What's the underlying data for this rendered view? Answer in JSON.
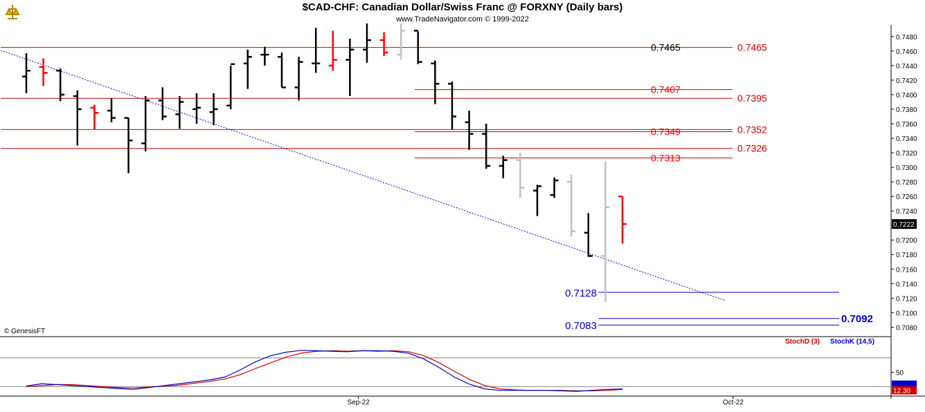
{
  "header": {
    "title": "$CAD-CHF:  Canadian Dollar/Swiss Franc @ FORXNY  (Daily bars)",
    "subtitle": "www.TradeNavigator.com © 1999-2022",
    "copyright": "© GenesisFT",
    "logo": "trade-navigator-logo-icon"
  },
  "chart_data": {
    "type": "ohlc",
    "symbol": "$CAD-CHF",
    "ylim": [
      0.7068,
      0.7496
    ],
    "y_ticks": [
      "0.7080",
      "0.7100",
      "0.7120",
      "0.7140",
      "0.7160",
      "0.7180",
      "0.7200",
      "0.7220",
      "0.7240",
      "0.7260",
      "0.7280",
      "0.7300",
      "0.7320",
      "0.7340",
      "0.7360",
      "0.7380",
      "0.7400",
      "0.7420",
      "0.7440",
      "0.7460",
      "0.7480"
    ],
    "x_labels": [
      {
        "label": "Sep-22",
        "bar": 19.5
      },
      {
        "label": "Oct-22",
        "bar": 41.5
      }
    ],
    "last_price": "0.7222",
    "bar_colors": {
      "black": "#000000",
      "red": "#ff0000",
      "gray": "#c0c0c0"
    },
    "bars": [
      {
        "o": 0.7425,
        "h": 0.7457,
        "l": 0.7402,
        "c": 0.7433,
        "color": "black"
      },
      {
        "o": 0.7438,
        "h": 0.745,
        "l": 0.7412,
        "c": 0.743,
        "color": "red"
      },
      {
        "o": 0.7433,
        "h": 0.7436,
        "l": 0.7391,
        "c": 0.74,
        "color": "black"
      },
      {
        "o": 0.7398,
        "h": 0.7406,
        "l": 0.733,
        "c": 0.738,
        "color": "black"
      },
      {
        "o": 0.7382,
        "h": 0.7386,
        "l": 0.7352,
        "c": 0.7375,
        "color": "red"
      },
      {
        "o": 0.7378,
        "h": 0.7395,
        "l": 0.7362,
        "c": 0.7368,
        "color": "black"
      },
      {
        "o": 0.7368,
        "h": 0.7368,
        "l": 0.7292,
        "c": 0.7337,
        "color": "black"
      },
      {
        "o": 0.7333,
        "h": 0.7398,
        "l": 0.7322,
        "c": 0.7392,
        "color": "black"
      },
      {
        "o": 0.7392,
        "h": 0.741,
        "l": 0.7365,
        "c": 0.737,
        "color": "black"
      },
      {
        "o": 0.7373,
        "h": 0.7398,
        "l": 0.7353,
        "c": 0.739,
        "color": "black"
      },
      {
        "o": 0.738,
        "h": 0.7402,
        "l": 0.736,
        "c": 0.7382,
        "color": "black"
      },
      {
        "o": 0.7376,
        "h": 0.7402,
        "l": 0.7358,
        "c": 0.738,
        "color": "black"
      },
      {
        "o": 0.7385,
        "h": 0.744,
        "l": 0.738,
        "c": 0.7442,
        "color": "black"
      },
      {
        "o": 0.7443,
        "h": 0.7462,
        "l": 0.7408,
        "c": 0.7452,
        "color": "black"
      },
      {
        "o": 0.7455,
        "h": 0.7466,
        "l": 0.744,
        "c": 0.7455,
        "color": "black"
      },
      {
        "o": 0.7452,
        "h": 0.7458,
        "l": 0.741,
        "c": 0.741,
        "color": "black"
      },
      {
        "o": 0.741,
        "h": 0.7452,
        "l": 0.7392,
        "c": 0.7445,
        "color": "black"
      },
      {
        "o": 0.7443,
        "h": 0.7492,
        "l": 0.743,
        "c": 0.7443,
        "color": "black"
      },
      {
        "o": 0.744,
        "h": 0.7488,
        "l": 0.7433,
        "c": 0.7448,
        "color": "red"
      },
      {
        "o": 0.7448,
        "h": 0.7477,
        "l": 0.7398,
        "c": 0.7462,
        "color": "black"
      },
      {
        "o": 0.7462,
        "h": 0.7498,
        "l": 0.7444,
        "c": 0.7475,
        "color": "black"
      },
      {
        "o": 0.7475,
        "h": 0.7486,
        "l": 0.7453,
        "c": 0.7458,
        "color": "red"
      },
      {
        "o": 0.7455,
        "h": 0.7498,
        "l": 0.7448,
        "c": 0.7488,
        "color": "gray"
      },
      {
        "o": 0.7488,
        "h": 0.7487,
        "l": 0.7442,
        "c": 0.7445,
        "color": "black"
      },
      {
        "o": 0.7443,
        "h": 0.7447,
        "l": 0.7387,
        "c": 0.7415,
        "color": "black"
      },
      {
        "o": 0.7415,
        "h": 0.7418,
        "l": 0.7352,
        "c": 0.737,
        "color": "black"
      },
      {
        "o": 0.7362,
        "h": 0.7378,
        "l": 0.7324,
        "c": 0.7346,
        "color": "black"
      },
      {
        "o": 0.7346,
        "h": 0.736,
        "l": 0.7298,
        "c": 0.7302,
        "color": "black"
      },
      {
        "o": 0.7302,
        "h": 0.7316,
        "l": 0.7285,
        "c": 0.731,
        "color": "black"
      },
      {
        "o": 0.731,
        "h": 0.732,
        "l": 0.7258,
        "c": 0.7272,
        "color": "gray"
      },
      {
        "o": 0.7268,
        "h": 0.7276,
        "l": 0.7233,
        "c": 0.7274,
        "color": "black"
      },
      {
        "o": 0.7262,
        "h": 0.7286,
        "l": 0.7258,
        "c": 0.7282,
        "color": "black"
      },
      {
        "o": 0.728,
        "h": 0.729,
        "l": 0.7205,
        "c": 0.7212,
        "color": "gray"
      },
      {
        "o": 0.721,
        "h": 0.7237,
        "l": 0.7177,
        "c": 0.7178,
        "color": "black"
      },
      {
        "o": 0.7178,
        "h": 0.7308,
        "l": 0.7115,
        "c": 0.7245,
        "color": "gray"
      },
      {
        "o": 0.726,
        "h": 0.726,
        "l": 0.7195,
        "c": 0.7222,
        "color": "red"
      }
    ],
    "red_levels": [
      {
        "value": 0.7465,
        "label": "0.7465",
        "from_bar": -1.5,
        "label_color": "#000000"
      },
      {
        "value": 0.7395,
        "label": "0.7395",
        "from_bar": -1.5,
        "label_color": "#ff0000"
      },
      {
        "value": 0.7352,
        "label": "0.7352",
        "from_bar": -1.5,
        "label_color": "#ff0000"
      },
      {
        "value": 0.7326,
        "label": "0.7326",
        "from_bar": -1.5,
        "label_color": "#ff0000"
      },
      {
        "value": 0.7407,
        "label": "0.7407",
        "from_bar": 22.8,
        "label_color": "#ff0000"
      },
      {
        "value": 0.7349,
        "label": "0.7349",
        "from_bar": 22.8,
        "label_color": "#ff0000"
      },
      {
        "value": 0.7313,
        "label": "0.7313",
        "from_bar": 22.8,
        "label_color": "#ff0000"
      }
    ],
    "right_labels": [
      {
        "value": 0.7465,
        "label": "0.7465"
      },
      {
        "value": 0.7395,
        "label": "0.7395"
      },
      {
        "value": 0.7352,
        "label": "0.7352"
      },
      {
        "value": 0.7326,
        "label": "0.7326"
      }
    ],
    "blue_levels": [
      {
        "value": 0.7128,
        "label": "0.7128",
        "from_bar": 33.6,
        "to_bar": 48.3
      },
      {
        "value": 0.7092,
        "label": "0.7092",
        "from_bar": 33.6,
        "to_bar": 48.3,
        "bold": true
      },
      {
        "value": 0.7083,
        "label": "0.7083",
        "from_bar": 33.6,
        "to_bar": 48.3
      }
    ],
    "trendline": {
      "x1": -1.5,
      "y1": 0.7461,
      "x2": 41.0,
      "y2": 0.7117,
      "color": "#0000cc"
    },
    "stochastic": {
      "ylim": [
        0,
        100
      ],
      "y_ticks": [
        "50"
      ],
      "level_lines": [
        20,
        80
      ],
      "last_value": "12.30",
      "series": [
        {
          "name": "StochD (3)",
          "color": "#cc0000",
          "values": [
            20,
            22,
            24,
            24,
            22,
            20,
            18,
            17,
            19,
            21,
            23,
            27,
            31,
            36,
            45,
            58,
            70,
            82,
            90,
            94,
            95,
            94,
            95,
            94,
            95,
            93,
            85,
            70,
            52,
            35,
            22,
            15,
            13,
            12,
            12,
            12,
            11,
            11,
            12,
            14
          ]
        },
        {
          "name": "StochK (14,5)",
          "color": "#0000cc",
          "values": [
            21,
            26,
            24,
            22,
            20,
            18,
            16,
            14,
            18,
            22,
            26,
            30,
            34,
            40,
            55,
            72,
            85,
            92,
            96,
            95,
            94,
            93,
            95,
            95,
            94,
            90,
            78,
            60,
            40,
            25,
            15,
            12,
            12,
            12,
            12,
            11,
            10,
            12,
            14,
            15
          ]
        }
      ]
    }
  }
}
